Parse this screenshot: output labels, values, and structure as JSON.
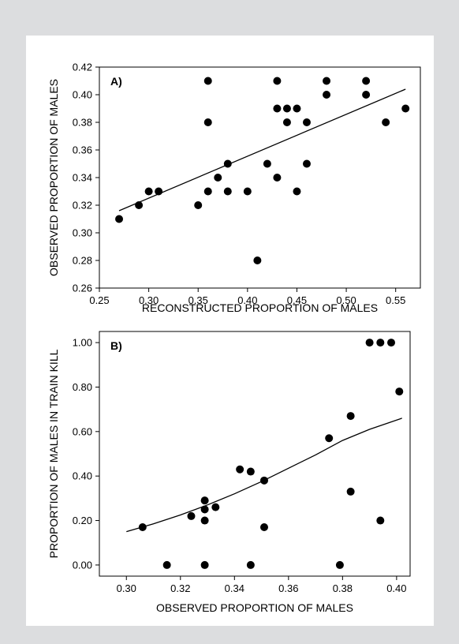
{
  "chart_data": [
    {
      "type": "scatter",
      "panel_label": "A)",
      "xlabel": "RECONSTRUCTED PROPORTION OF MALES",
      "ylabel": "OBSERVED PROPORTION OF MALES",
      "xlim": [
        0.25,
        0.575
      ],
      "ylim": [
        0.26,
        0.42
      ],
      "xticks": [
        0.25,
        0.3,
        0.35,
        0.4,
        0.45,
        0.5,
        0.55
      ],
      "xtick_labels": [
        "0.25",
        "0.30",
        "0.35",
        "0.40",
        "0.45",
        "0.50",
        "0.55"
      ],
      "yticks": [
        0.26,
        0.28,
        0.3,
        0.32,
        0.34,
        0.36,
        0.38,
        0.4,
        0.42
      ],
      "ytick_labels": [
        "0.26",
        "0.28",
        "0.30",
        "0.32",
        "0.34",
        "0.36",
        "0.38",
        "0.40",
        "0.42"
      ],
      "points": [
        [
          0.27,
          0.31
        ],
        [
          0.29,
          0.32
        ],
        [
          0.3,
          0.33
        ],
        [
          0.31,
          0.33
        ],
        [
          0.35,
          0.32
        ],
        [
          0.36,
          0.41
        ],
        [
          0.36,
          0.38
        ],
        [
          0.36,
          0.33
        ],
        [
          0.37,
          0.34
        ],
        [
          0.38,
          0.35
        ],
        [
          0.38,
          0.33
        ],
        [
          0.4,
          0.33
        ],
        [
          0.41,
          0.28
        ],
        [
          0.42,
          0.35
        ],
        [
          0.43,
          0.41
        ],
        [
          0.43,
          0.39
        ],
        [
          0.43,
          0.34
        ],
        [
          0.44,
          0.39
        ],
        [
          0.44,
          0.38
        ],
        [
          0.45,
          0.39
        ],
        [
          0.45,
          0.33
        ],
        [
          0.46,
          0.38
        ],
        [
          0.46,
          0.35
        ],
        [
          0.48,
          0.41
        ],
        [
          0.48,
          0.4
        ],
        [
          0.52,
          0.41
        ],
        [
          0.52,
          0.4
        ],
        [
          0.54,
          0.38
        ],
        [
          0.56,
          0.39
        ]
      ],
      "fit_line": [
        [
          0.27,
          0.316
        ],
        [
          0.56,
          0.404
        ]
      ],
      "grid": false
    },
    {
      "type": "scatter",
      "panel_label": "B)",
      "xlabel": "OBSERVED PROPORTION OF MALES",
      "ylabel": "PROPORTION OF MALES IN TRAIN KILL",
      "xlim": [
        0.29,
        0.405
      ],
      "ylim": [
        -0.05,
        1.05
      ],
      "xticks": [
        0.3,
        0.32,
        0.34,
        0.36,
        0.38,
        0.4
      ],
      "xtick_labels": [
        "0.30",
        "0.32",
        "0.34",
        "0.36",
        "0.38",
        "0.40"
      ],
      "yticks": [
        0.0,
        0.2,
        0.4,
        0.6,
        0.8,
        1.0
      ],
      "ytick_labels": [
        "0.00",
        "0.20",
        "0.40",
        "0.60",
        "0.80",
        "1.00"
      ],
      "points": [
        [
          0.306,
          0.17
        ],
        [
          0.315,
          0.0
        ],
        [
          0.324,
          0.22
        ],
        [
          0.329,
          0.29
        ],
        [
          0.329,
          0.25
        ],
        [
          0.329,
          0.2
        ],
        [
          0.329,
          0.0
        ],
        [
          0.333,
          0.26
        ],
        [
          0.342,
          0.43
        ],
        [
          0.346,
          0.42
        ],
        [
          0.346,
          0.0
        ],
        [
          0.351,
          0.38
        ],
        [
          0.351,
          0.17
        ],
        [
          0.375,
          0.57
        ],
        [
          0.379,
          0.0
        ],
        [
          0.383,
          0.67
        ],
        [
          0.383,
          0.33
        ],
        [
          0.39,
          1.0
        ],
        [
          0.394,
          1.0
        ],
        [
          0.394,
          0.2
        ],
        [
          0.398,
          1.0
        ],
        [
          0.401,
          0.78
        ]
      ],
      "fit_curve": [
        [
          0.3,
          0.15
        ],
        [
          0.31,
          0.185
        ],
        [
          0.32,
          0.225
        ],
        [
          0.33,
          0.27
        ],
        [
          0.34,
          0.32
        ],
        [
          0.35,
          0.375
        ],
        [
          0.36,
          0.435
        ],
        [
          0.37,
          0.495
        ],
        [
          0.38,
          0.56
        ],
        [
          0.39,
          0.61
        ],
        [
          0.402,
          0.66
        ]
      ],
      "grid": false
    }
  ]
}
